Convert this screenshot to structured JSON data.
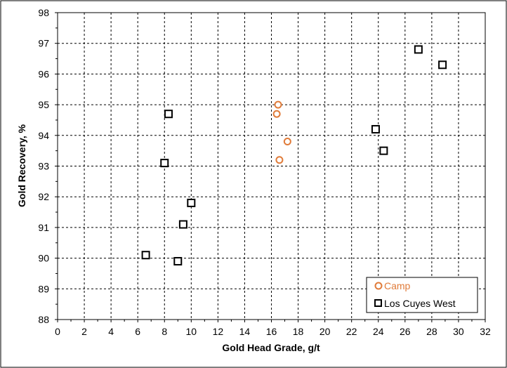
{
  "chart_data": {
    "type": "scatter",
    "xlabel": "Gold Head Grade, g/t",
    "ylabel": "Gold Recovery, %",
    "xlim": [
      0,
      32
    ],
    "ylim": [
      88,
      98
    ],
    "x_ticks": [
      0,
      2,
      4,
      6,
      8,
      10,
      12,
      14,
      16,
      18,
      20,
      22,
      24,
      26,
      28,
      30,
      32
    ],
    "y_ticks": [
      88,
      89,
      90,
      91,
      92,
      93,
      94,
      95,
      96,
      97,
      98
    ],
    "grid": true,
    "legend_position": "bottom-right",
    "series": [
      {
        "name": "Camp",
        "marker": "circle",
        "color": "#E07B39",
        "points": [
          {
            "x": 16.5,
            "y": 95.0
          },
          {
            "x": 16.4,
            "y": 94.7
          },
          {
            "x": 17.2,
            "y": 93.8
          },
          {
            "x": 16.6,
            "y": 93.2
          }
        ]
      },
      {
        "name": "Los Cuyes West",
        "marker": "square",
        "color": "#000000",
        "points": [
          {
            "x": 8.3,
            "y": 94.7
          },
          {
            "x": 8.0,
            "y": 93.1
          },
          {
            "x": 10.0,
            "y": 91.8
          },
          {
            "x": 9.4,
            "y": 91.1
          },
          {
            "x": 6.6,
            "y": 90.1
          },
          {
            "x": 9.0,
            "y": 89.9
          },
          {
            "x": 23.8,
            "y": 94.2
          },
          {
            "x": 24.4,
            "y": 93.5
          },
          {
            "x": 27.0,
            "y": 96.8
          },
          {
            "x": 28.8,
            "y": 96.3
          }
        ]
      }
    ]
  }
}
